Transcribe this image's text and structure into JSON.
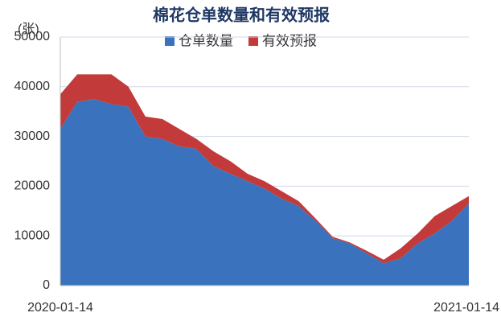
{
  "chart_data": {
    "type": "stacked_area",
    "title": "棉花仓单数量和有效预报",
    "y_label": "(张)",
    "categories": [
      "2020-01-14",
      null,
      null,
      null,
      null,
      null,
      null,
      null,
      null,
      null,
      null,
      null,
      null,
      null,
      null,
      null,
      null,
      null,
      null,
      null,
      null,
      null,
      null,
      null,
      "2021-01-14"
    ],
    "series": [
      {
        "name": "仓单数量",
        "color": "#3a72bd",
        "values": [
          31500,
          37000,
          37500,
          36500,
          36000,
          30000,
          29500,
          28000,
          27500,
          24000,
          22500,
          21000,
          19500,
          17500,
          16000,
          13000,
          9500,
          8500,
          6500,
          4500,
          5500,
          8500,
          10500,
          13000,
          16500
        ]
      },
      {
        "name": "有效预报",
        "color": "#c23a3a",
        "values": [
          7000,
          5500,
          5000,
          6000,
          4000,
          4000,
          4000,
          3500,
          2000,
          3000,
          2500,
          1500,
          1500,
          1500,
          1000,
          500,
          300,
          200,
          500,
          700,
          2000,
          2000,
          3500,
          3000,
          1500
        ]
      }
    ],
    "ylim": [
      0,
      50000
    ],
    "yticks": [
      0,
      10000,
      20000,
      30000,
      40000,
      50000
    ],
    "grid": true
  }
}
